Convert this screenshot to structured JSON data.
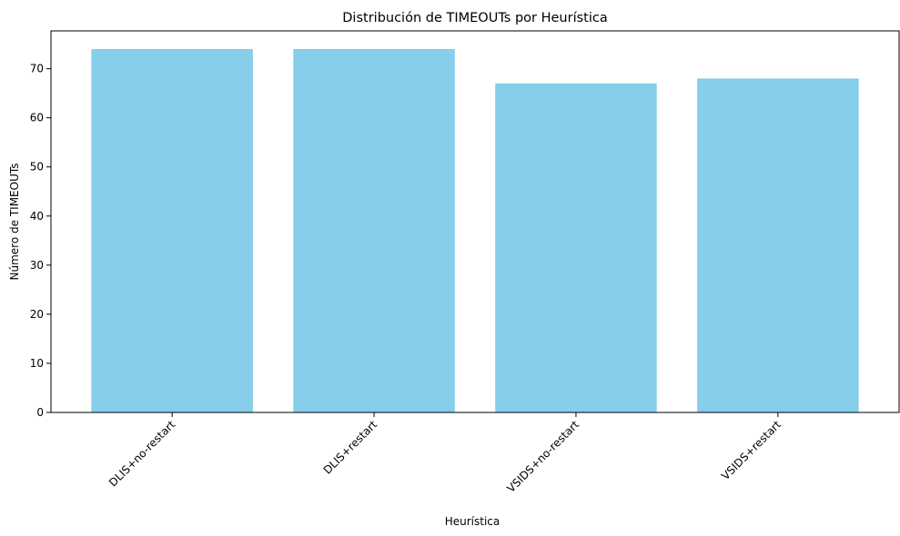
{
  "chart_data": {
    "type": "bar",
    "title": "Distribución de TIMEOUTs por Heurística",
    "xlabel": "Heurística",
    "ylabel": "Número de TIMEOUTs",
    "categories": [
      "DLIS+no-restart",
      "DLIS+restart",
      "VSIDS+no-restart",
      "VSIDS+restart"
    ],
    "values": [
      74,
      74,
      67,
      68
    ],
    "ylim": [
      0,
      77.7
    ],
    "yticks": [
      0,
      10,
      20,
      30,
      40,
      50,
      60,
      70
    ],
    "bar_color": "#87CEEB",
    "grid": false,
    "legend": "none"
  }
}
